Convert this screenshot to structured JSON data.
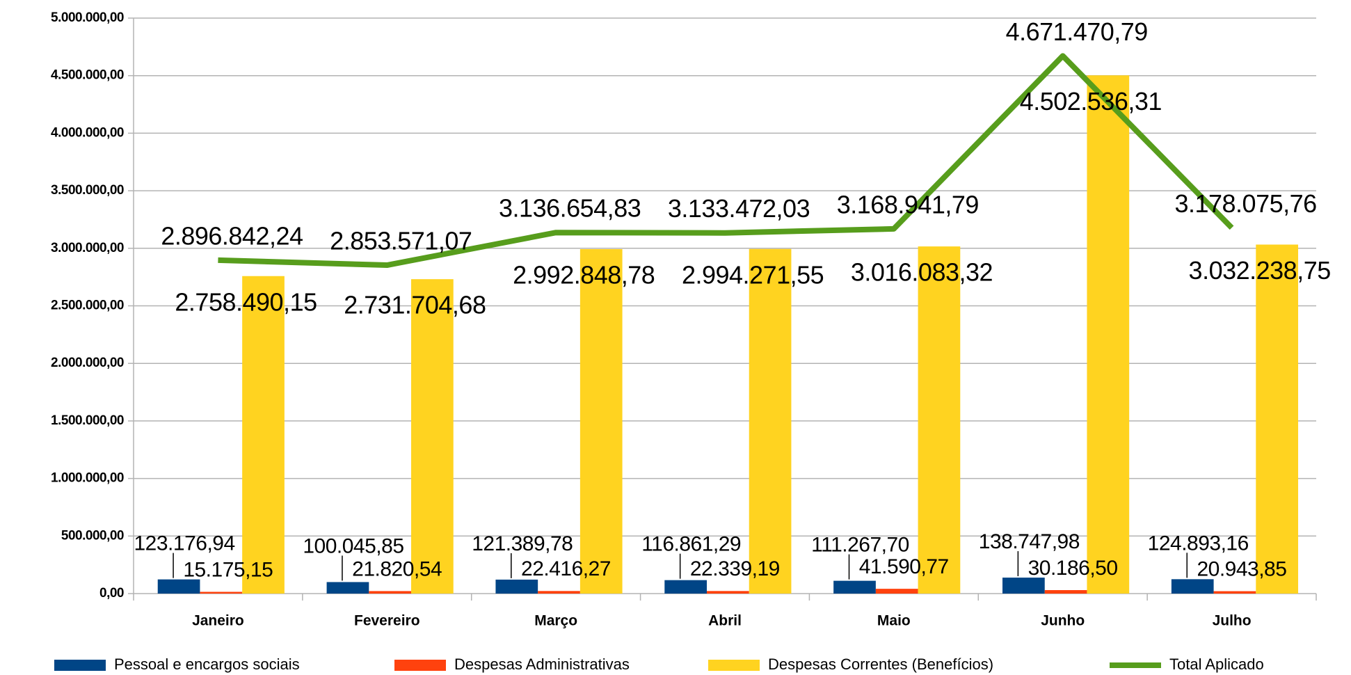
{
  "chart_data": {
    "type": "bar",
    "categories": [
      "Janeiro",
      "Fevereiro",
      "Março",
      "Abril",
      "Maio",
      "Junho",
      "Julho"
    ],
    "series": [
      {
        "name": "Pessoal e encargos sociais",
        "color": "#004586",
        "type": "bar",
        "values": [
          123176.94,
          100045.85,
          121389.78,
          116861.29,
          111267.7,
          138747.98,
          124893.16
        ],
        "value_labels": [
          "123.176,94",
          "100.045,85",
          "121.389,78",
          "116.861,29",
          "111.267,70",
          "138.747,98",
          "124.893,16"
        ]
      },
      {
        "name": "Despesas Administrativas",
        "color": "#ff420e",
        "type": "bar",
        "values": [
          15175.15,
          21820.54,
          22416.27,
          22339.19,
          41590.77,
          30186.5,
          20943.85
        ],
        "value_labels": [
          "15.175,15",
          "21.820,54",
          "22.416,27",
          "22.339,19",
          "41.590,77",
          "30.186,50",
          "20.943,85"
        ]
      },
      {
        "name": "Despesas Correntes (Benefícios)",
        "color": "#ffd320",
        "type": "bar",
        "values": [
          2758490.15,
          2731704.68,
          2992848.78,
          2994271.55,
          3016083.32,
          4502536.31,
          3032238.75
        ],
        "value_labels": [
          "2.758.490,15",
          "2.731.704,68",
          "2.992.848,78",
          "2.994.271,55",
          "3.016.083,32",
          "4.502.536,31",
          "3.032.238,75"
        ]
      },
      {
        "name": "Total Aplicado",
        "color": "#579d1c",
        "type": "line",
        "values": [
          2896842.24,
          2853571.07,
          3136654.83,
          3133472.03,
          3168941.79,
          4671470.79,
          3178075.76
        ],
        "value_labels": [
          "2.896.842,24",
          "2.853.571,07",
          "3.136.654,83",
          "3.133.472,03",
          "3.168.941,79",
          "4.671.470,79",
          "3.178.075,76"
        ]
      }
    ],
    "ylim": [
      0,
      5000000
    ],
    "yticks": [
      {
        "value": 0,
        "label": "0,00"
      },
      {
        "value": 500000,
        "label": "500.000,00"
      },
      {
        "value": 1000000,
        "label": "1.000.000,00"
      },
      {
        "value": 1500000,
        "label": "1.500.000,00"
      },
      {
        "value": 2000000,
        "label": "2.000.000,00"
      },
      {
        "value": 2500000,
        "label": "2.500.000,00"
      },
      {
        "value": 3000000,
        "label": "3.000.000,00"
      },
      {
        "value": 3500000,
        "label": "3.500.000,00"
      },
      {
        "value": 4000000,
        "label": "4.000.000,00"
      },
      {
        "value": 4500000,
        "label": "4.500.000,00"
      },
      {
        "value": 5000000,
        "label": "5.000.000,00"
      }
    ],
    "grid": true,
    "legend": "bottom"
  }
}
